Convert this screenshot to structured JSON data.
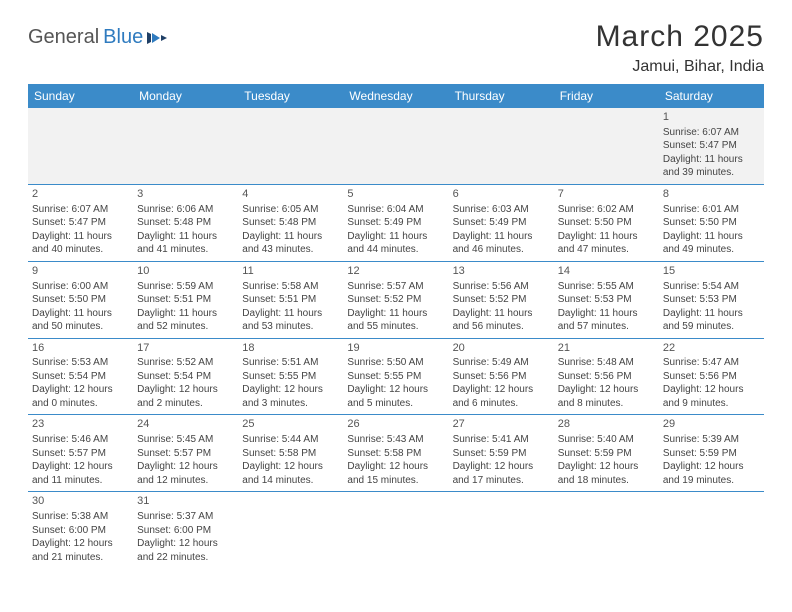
{
  "logo": {
    "text1": "General",
    "text2": "Blue"
  },
  "title": "March 2025",
  "location": "Jamui, Bihar, India",
  "colors": {
    "header_bg": "#3b8bc9",
    "header_text": "#ffffff",
    "border": "#3b8bc9",
    "text": "#444444",
    "accent": "#2f7bbf",
    "empty_bg": "#f2f2f2"
  },
  "weekdays": [
    "Sunday",
    "Monday",
    "Tuesday",
    "Wednesday",
    "Thursday",
    "Friday",
    "Saturday"
  ],
  "days": [
    {
      "n": 1,
      "sr": "6:07 AM",
      "ss": "5:47 PM",
      "dl": "11 hours and 39 minutes."
    },
    {
      "n": 2,
      "sr": "6:07 AM",
      "ss": "5:47 PM",
      "dl": "11 hours and 40 minutes."
    },
    {
      "n": 3,
      "sr": "6:06 AM",
      "ss": "5:48 PM",
      "dl": "11 hours and 41 minutes."
    },
    {
      "n": 4,
      "sr": "6:05 AM",
      "ss": "5:48 PM",
      "dl": "11 hours and 43 minutes."
    },
    {
      "n": 5,
      "sr": "6:04 AM",
      "ss": "5:49 PM",
      "dl": "11 hours and 44 minutes."
    },
    {
      "n": 6,
      "sr": "6:03 AM",
      "ss": "5:49 PM",
      "dl": "11 hours and 46 minutes."
    },
    {
      "n": 7,
      "sr": "6:02 AM",
      "ss": "5:50 PM",
      "dl": "11 hours and 47 minutes."
    },
    {
      "n": 8,
      "sr": "6:01 AM",
      "ss": "5:50 PM",
      "dl": "11 hours and 49 minutes."
    },
    {
      "n": 9,
      "sr": "6:00 AM",
      "ss": "5:50 PM",
      "dl": "11 hours and 50 minutes."
    },
    {
      "n": 10,
      "sr": "5:59 AM",
      "ss": "5:51 PM",
      "dl": "11 hours and 52 minutes."
    },
    {
      "n": 11,
      "sr": "5:58 AM",
      "ss": "5:51 PM",
      "dl": "11 hours and 53 minutes."
    },
    {
      "n": 12,
      "sr": "5:57 AM",
      "ss": "5:52 PM",
      "dl": "11 hours and 55 minutes."
    },
    {
      "n": 13,
      "sr": "5:56 AM",
      "ss": "5:52 PM",
      "dl": "11 hours and 56 minutes."
    },
    {
      "n": 14,
      "sr": "5:55 AM",
      "ss": "5:53 PM",
      "dl": "11 hours and 57 minutes."
    },
    {
      "n": 15,
      "sr": "5:54 AM",
      "ss": "5:53 PM",
      "dl": "11 hours and 59 minutes."
    },
    {
      "n": 16,
      "sr": "5:53 AM",
      "ss": "5:54 PM",
      "dl": "12 hours and 0 minutes."
    },
    {
      "n": 17,
      "sr": "5:52 AM",
      "ss": "5:54 PM",
      "dl": "12 hours and 2 minutes."
    },
    {
      "n": 18,
      "sr": "5:51 AM",
      "ss": "5:55 PM",
      "dl": "12 hours and 3 minutes."
    },
    {
      "n": 19,
      "sr": "5:50 AM",
      "ss": "5:55 PM",
      "dl": "12 hours and 5 minutes."
    },
    {
      "n": 20,
      "sr": "5:49 AM",
      "ss": "5:56 PM",
      "dl": "12 hours and 6 minutes."
    },
    {
      "n": 21,
      "sr": "5:48 AM",
      "ss": "5:56 PM",
      "dl": "12 hours and 8 minutes."
    },
    {
      "n": 22,
      "sr": "5:47 AM",
      "ss": "5:56 PM",
      "dl": "12 hours and 9 minutes."
    },
    {
      "n": 23,
      "sr": "5:46 AM",
      "ss": "5:57 PM",
      "dl": "12 hours and 11 minutes."
    },
    {
      "n": 24,
      "sr": "5:45 AM",
      "ss": "5:57 PM",
      "dl": "12 hours and 12 minutes."
    },
    {
      "n": 25,
      "sr": "5:44 AM",
      "ss": "5:58 PM",
      "dl": "12 hours and 14 minutes."
    },
    {
      "n": 26,
      "sr": "5:43 AM",
      "ss": "5:58 PM",
      "dl": "12 hours and 15 minutes."
    },
    {
      "n": 27,
      "sr": "5:41 AM",
      "ss": "5:59 PM",
      "dl": "12 hours and 17 minutes."
    },
    {
      "n": 28,
      "sr": "5:40 AM",
      "ss": "5:59 PM",
      "dl": "12 hours and 18 minutes."
    },
    {
      "n": 29,
      "sr": "5:39 AM",
      "ss": "5:59 PM",
      "dl": "12 hours and 19 minutes."
    },
    {
      "n": 30,
      "sr": "5:38 AM",
      "ss": "6:00 PM",
      "dl": "12 hours and 21 minutes."
    },
    {
      "n": 31,
      "sr": "5:37 AM",
      "ss": "6:00 PM",
      "dl": "12 hours and 22 minutes."
    }
  ],
  "labels": {
    "sunrise": "Sunrise:",
    "sunset": "Sunset:",
    "daylight": "Daylight:"
  },
  "first_weekday_index": 6
}
